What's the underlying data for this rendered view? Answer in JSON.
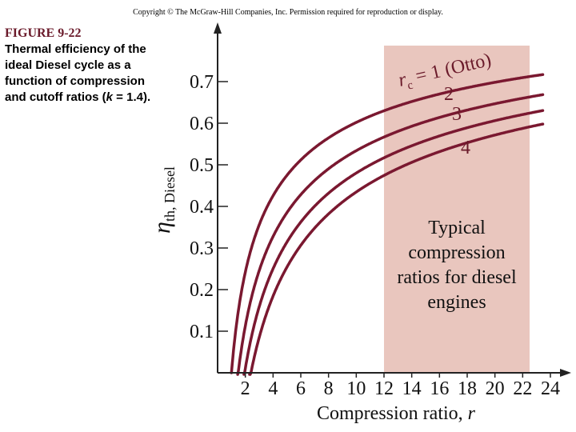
{
  "header": {
    "copyright": "Copyright © The McGraw-Hill Companies, Inc. Permission required for reproduction or display."
  },
  "caption": {
    "figure": "FIGURE 9-22",
    "text": "Thermal efficiency of the ideal Diesel cycle as a function of compression and cutoff ratios (",
    "k_symbol": "k",
    "text_end": " = 1.4)."
  },
  "colors": {
    "curve": "#7a1830",
    "region": "#e9c6be",
    "axis": "#222222"
  },
  "chart_data": {
    "type": "line",
    "xlabel_text": "Compression ratio, ",
    "xlabel_symbol": "r",
    "ylabel_symbol": "η",
    "ylabel_subscript": "th, Diesel",
    "xlim": [
      0,
      24
    ],
    "ylim": [
      0,
      0.8
    ],
    "x_ticks": [
      2,
      4,
      6,
      8,
      10,
      12,
      14,
      16,
      18,
      20,
      22,
      24
    ],
    "y_ticks": [
      0.1,
      0.2,
      0.3,
      0.4,
      0.5,
      0.6,
      0.7
    ],
    "k": 1.4,
    "series": [
      {
        "name": "r_c = 1 (Otto)",
        "rc": 1,
        "label_parts": [
          "r",
          "c",
          " = 1 (Otto)"
        ]
      },
      {
        "name": "2",
        "rc": 2,
        "label_parts": [
          "2"
        ]
      },
      {
        "name": "3",
        "rc": 3,
        "label_parts": [
          "3"
        ]
      },
      {
        "name": "4",
        "rc": 4,
        "label_parts": [
          "4"
        ]
      }
    ],
    "shaded_region": {
      "x_range": [
        12,
        22.5
      ],
      "label_lines": [
        "Typical",
        "compression",
        "ratios for diesel",
        "engines"
      ]
    }
  }
}
